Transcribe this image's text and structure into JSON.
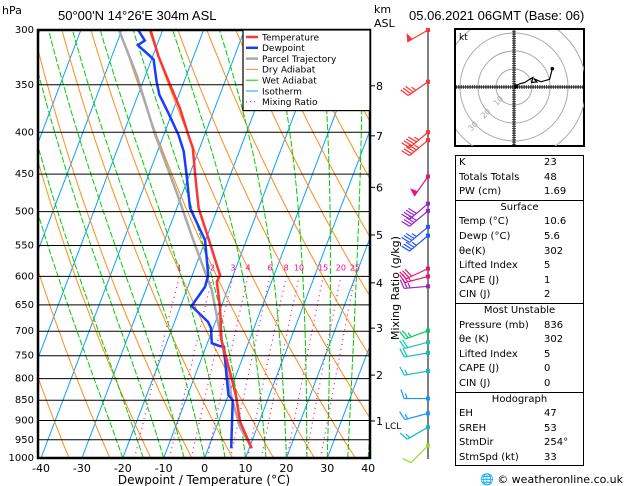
{
  "header": {
    "pressure_unit": "hPa",
    "location": "50°00'N  14°26'E  304m  ASL",
    "km_unit": "km",
    "asl": "ASL",
    "datetime": "05.06.2021  06GMT  (Base: 06)"
  },
  "colors": {
    "temperature": "#ff3333",
    "dewpoint": "#1a3cff",
    "parcel": "#aaaaaa",
    "dry_adiabat": "#ff8c1a",
    "wet_adiabat": "#00cc00",
    "isotherm": "#0aa0ff",
    "mixing_ratio": "#ff0099"
  },
  "chart_data": {
    "type": "skew-t",
    "xlabel": "Dewpoint / Temperature (°C)",
    "ylabel": "hPa",
    "xlim": [
      -40,
      40
    ],
    "ylim": [
      1000,
      300
    ],
    "x_ticks": [
      "-40",
      "-30",
      "-20",
      "-10",
      "0",
      "10",
      "20",
      "30",
      "40"
    ],
    "pressure_ticks": [
      "300",
      "350",
      "400",
      "450",
      "500",
      "550",
      "600",
      "650",
      "700",
      "750",
      "800",
      "850",
      "900",
      "950",
      "1000"
    ],
    "mixing_ratio_axis_label": "Mixing Ratio (g/kg)",
    "mixing_ratio_labels": [
      "1",
      "2",
      "3",
      "4",
      "6",
      "8",
      "10",
      "15",
      "20",
      "25"
    ],
    "km_levels": [
      {
        "label": "8",
        "p": 351
      },
      {
        "label": "7",
        "p": 404
      },
      {
        "label": "6",
        "p": 467
      },
      {
        "label": "5",
        "p": 534
      },
      {
        "label": "4",
        "p": 611
      },
      {
        "label": "3",
        "p": 694
      },
      {
        "label": "2",
        "p": 792
      },
      {
        "label": "1",
        "p": 901
      }
    ],
    "lcl_label": "LCL",
    "legend": [
      "Temperature",
      "Dewpoint",
      "Parcel Trajectory",
      "Dry Adiabat",
      "Wet Adiabat",
      "Isotherm",
      "Mixing Ratio"
    ],
    "temperature": [
      [
        973,
        10.6
      ],
      [
        903,
        5.3
      ],
      [
        838,
        1.8
      ],
      [
        799,
        -0.8
      ],
      [
        718,
        -6.8
      ],
      [
        653,
        -10.3
      ],
      [
        609,
        -13.4
      ],
      [
        598,
        -13.2
      ],
      [
        573,
        -15.8
      ],
      [
        545,
        -18.8
      ],
      [
        495,
        -24.7
      ],
      [
        451,
        -28.6
      ],
      [
        418,
        -31.7
      ],
      [
        403,
        -34.0
      ],
      [
        374,
        -38.5
      ],
      [
        350,
        -43.1
      ],
      [
        323,
        -48.6
      ],
      [
        300,
        -53.0
      ]
    ],
    "dewpoint": [
      [
        973,
        5.6
      ],
      [
        850,
        1.5
      ],
      [
        838,
        0.0
      ],
      [
        803,
        -1.8
      ],
      [
        731,
        -5.6
      ],
      [
        730,
        -6.7
      ],
      [
        724,
        -8.9
      ],
      [
        694,
        -10.5
      ],
      [
        682,
        -11.8
      ],
      [
        652,
        -17.3
      ],
      [
        618,
        -15.8
      ],
      [
        598,
        -16.1
      ],
      [
        542,
        -20.1
      ],
      [
        495,
        -26.8
      ],
      [
        451,
        -30.7
      ],
      [
        422,
        -33.6
      ],
      [
        403,
        -36.4
      ],
      [
        379,
        -40.9
      ],
      [
        360,
        -44.8
      ],
      [
        347,
        -46.7
      ],
      [
        326,
        -49.5
      ],
      [
        323,
        -50.6
      ],
      [
        313,
        -54.7
      ],
      [
        309,
        -53.4
      ],
      [
        300,
        -56.0
      ]
    ],
    "parcel": [
      [
        973,
        10.6
      ],
      [
        916,
        5.7
      ],
      [
        842,
        0.9
      ],
      [
        718,
        -6.8
      ],
      [
        623,
        -13.9
      ],
      [
        542,
        -23.0
      ],
      [
        473,
        -31.6
      ],
      [
        403,
        -42.1
      ],
      [
        341,
        -52.1
      ],
      [
        300,
        -60.7
      ]
    ],
    "winds": [
      {
        "p": 300,
        "dir": 240,
        "kt": 50,
        "color": "#ff3333"
      },
      {
        "p": 347,
        "dir": 235,
        "kt": 35,
        "color": "#ff3333"
      },
      {
        "p": 400,
        "dir": 230,
        "kt": 45,
        "color": "#ff3333"
      },
      {
        "p": 409,
        "dir": 230,
        "kt": 45,
        "color": "#ff3333"
      },
      {
        "p": 453,
        "dir": 215,
        "kt": 50,
        "color": "#ee1177"
      },
      {
        "p": 489,
        "dir": 230,
        "kt": 40,
        "color": "#9922cc"
      },
      {
        "p": 499,
        "dir": 230,
        "kt": 40,
        "color": "#9922cc"
      },
      {
        "p": 522,
        "dir": 230,
        "kt": 35,
        "color": "#2255ff"
      },
      {
        "p": 535,
        "dir": 230,
        "kt": 35,
        "color": "#2255ff"
      },
      {
        "p": 587,
        "dir": 245,
        "kt": 30,
        "color": "#ee1177"
      },
      {
        "p": 600,
        "dir": 255,
        "kt": 25,
        "color": "#ee1177"
      },
      {
        "p": 617,
        "dir": 265,
        "kt": 25,
        "color": "#9922cc"
      },
      {
        "p": 699,
        "dir": 250,
        "kt": 25,
        "color": "#00cc66"
      },
      {
        "p": 722,
        "dir": 255,
        "kt": 20,
        "color": "#11ccaa"
      },
      {
        "p": 744,
        "dir": 260,
        "kt": 20,
        "color": "#11bbcc"
      },
      {
        "p": 783,
        "dir": 260,
        "kt": 15,
        "color": "#11bbcc"
      },
      {
        "p": 846,
        "dir": 270,
        "kt": 15,
        "color": "#1199ff"
      },
      {
        "p": 882,
        "dir": 255,
        "kt": 15,
        "color": "#1199ff"
      },
      {
        "p": 917,
        "dir": 240,
        "kt": 15,
        "color": "#11bbcc"
      },
      {
        "p": 966,
        "dir": 225,
        "kt": 10,
        "color": "#99dd33"
      }
    ],
    "hodograph": {
      "unit": "kt",
      "ring_labels": [
        "10",
        "20",
        "30"
      ],
      "trace_uv": [
        [
          1.2,
          0.4
        ],
        [
          3.1,
          1.8
        ],
        [
          6,
          2.5
        ],
        [
          8.7,
          4.3
        ],
        [
          10.5,
          5.3
        ],
        [
          9.8,
          2.6
        ],
        [
          12.8,
          2.8
        ],
        [
          11,
          4.6
        ],
        [
          15,
          2.9
        ],
        [
          19.8,
          4.3
        ],
        [
          21.3,
          10.2
        ]
      ]
    }
  },
  "indices": {
    "top": [
      {
        "label": "K",
        "value": "23"
      },
      {
        "label": "Totals Totals",
        "value": "48"
      },
      {
        "label": "PW (cm)",
        "value": "1.69"
      }
    ],
    "surface": {
      "title": "Surface",
      "rows": [
        {
          "label": "Temp (°C)",
          "value": "10.6"
        },
        {
          "label": "Dewp (°C)",
          "value": "5.6"
        },
        {
          "label": "θe(K)",
          "value": "302"
        },
        {
          "label": "Lifted Index",
          "value": "5"
        },
        {
          "label": "CAPE (J)",
          "value": "1"
        },
        {
          "label": "CIN (J)",
          "value": "2"
        }
      ]
    },
    "most_unstable": {
      "title": "Most Unstable",
      "rows": [
        {
          "label": "Pressure (mb)",
          "value": "836"
        },
        {
          "label": "θe (K)",
          "value": "302"
        },
        {
          "label": "Lifted Index",
          "value": "5"
        },
        {
          "label": "CAPE (J)",
          "value": "0"
        },
        {
          "label": "CIN (J)",
          "value": "0"
        }
      ]
    },
    "hodograph": {
      "title": "Hodograph",
      "rows": [
        {
          "label": "EH",
          "value": "47"
        },
        {
          "label": "SREH",
          "value": "53"
        },
        {
          "label": "StmDir",
          "value": "254°"
        },
        {
          "label": "StmSpd (kt)",
          "value": "33"
        }
      ]
    }
  },
  "footer": {
    "copyright": "© weatheronline.co.uk"
  }
}
